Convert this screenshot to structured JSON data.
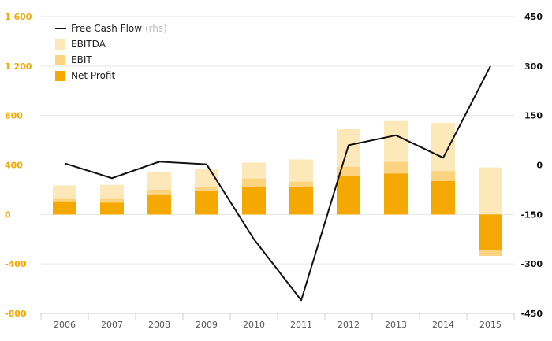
{
  "chart_data": {
    "type": "bar",
    "categories": [
      "2006",
      "2007",
      "2008",
      "2009",
      "2010",
      "2011",
      "2012",
      "2013",
      "2014",
      "2015"
    ],
    "series": [
      {
        "name": "EBITDA",
        "type": "bar",
        "axis": "left",
        "color": "#fde8b9",
        "values": [
          235,
          240,
          345,
          365,
          420,
          445,
          690,
          755,
          740,
          380
        ]
      },
      {
        "name": "EBIT",
        "type": "bar",
        "axis": "left",
        "color": "#fcd37e",
        "values": [
          125,
          125,
          200,
          225,
          290,
          265,
          385,
          425,
          350,
          -335
        ]
      },
      {
        "name": "Net Profit",
        "type": "bar",
        "axis": "left",
        "color": "#f5a800",
        "values": [
          105,
          95,
          160,
          190,
          225,
          220,
          310,
          330,
          270,
          -285
        ]
      },
      {
        "name": "Free Cash Flow",
        "unit_label": "(rhs)",
        "type": "line",
        "axis": "right",
        "color": "#111111",
        "values": [
          5,
          -40,
          10,
          2,
          -225,
          -410,
          60,
          90,
          22,
          300
        ]
      }
    ],
    "left_axis": {
      "ylim": [
        -800,
        1600
      ],
      "ticks": [
        -800,
        -400,
        0,
        400,
        800,
        1200,
        1600
      ],
      "tick_labels": [
        "-800",
        "-400",
        "0",
        "400",
        "800",
        "1 200",
        "1 600"
      ]
    },
    "right_axis": {
      "ylim": [
        -450,
        450
      ],
      "ticks": [
        -450,
        -300,
        -150,
        0,
        150,
        300,
        450
      ],
      "tick_labels": [
        "-450",
        "-300",
        "-150",
        "0",
        "150",
        "300",
        "450"
      ]
    },
    "legend": {
      "position": "top-left"
    },
    "grid": true
  }
}
